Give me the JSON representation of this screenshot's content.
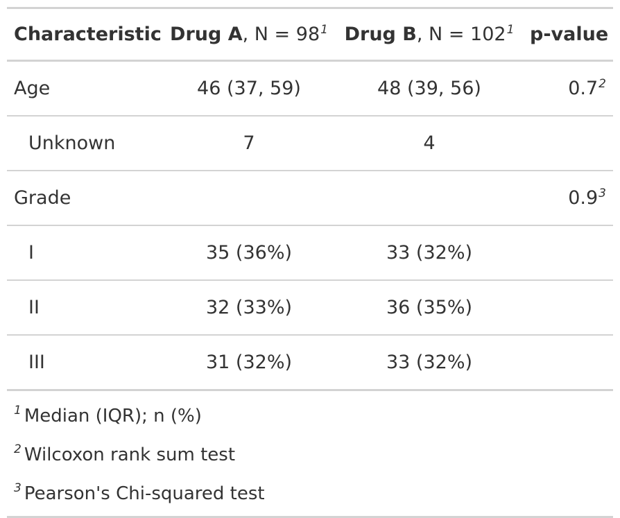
{
  "table": {
    "header": {
      "characteristic": "Characteristic",
      "drug_a_name": "Drug A",
      "drug_a_n": ", N = 98",
      "drug_a_mark": "1",
      "drug_b_name": "Drug B",
      "drug_b_n": ", N = 102",
      "drug_b_mark": "1",
      "p_value": "p-value"
    },
    "rows": [
      {
        "label": "Age",
        "drug_a": "46 (37, 59)",
        "drug_b": "48 (39, 56)",
        "p": "0.7",
        "p_mark": "2"
      },
      {
        "label": "Unknown",
        "drug_a": "7",
        "drug_b": "4",
        "p": "",
        "p_mark": ""
      },
      {
        "label": "Grade",
        "drug_a": "",
        "drug_b": "",
        "p": "0.9",
        "p_mark": "3"
      },
      {
        "label": "I",
        "drug_a": "35 (36%)",
        "drug_b": "33 (32%)",
        "p": "",
        "p_mark": ""
      },
      {
        "label": "II",
        "drug_a": "32 (33%)",
        "drug_b": "36 (35%)",
        "p": "",
        "p_mark": ""
      },
      {
        "label": "III",
        "drug_a": "31 (32%)",
        "drug_b": "33 (32%)",
        "p": "",
        "p_mark": ""
      }
    ],
    "footnotes": [
      {
        "mark": "1",
        "text": "Median (IQR); n (%)"
      },
      {
        "mark": "2",
        "text": "Wilcoxon rank sum test"
      },
      {
        "mark": "3",
        "text": "Pearson's Chi-squared test"
      }
    ]
  }
}
